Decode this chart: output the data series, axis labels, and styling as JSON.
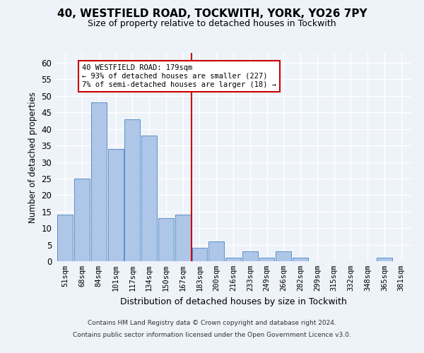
{
  "title1": "40, WESTFIELD ROAD, TOCKWITH, YORK, YO26 7PY",
  "title2": "Size of property relative to detached houses in Tockwith",
  "xlabel": "Distribution of detached houses by size in Tockwith",
  "ylabel": "Number of detached properties",
  "bar_labels": [
    "51sqm",
    "68sqm",
    "84sqm",
    "101sqm",
    "117sqm",
    "134sqm",
    "150sqm",
    "167sqm",
    "183sqm",
    "200sqm",
    "216sqm",
    "233sqm",
    "249sqm",
    "266sqm",
    "282sqm",
    "299sqm",
    "315sqm",
    "332sqm",
    "348sqm",
    "365sqm",
    "381sqm"
  ],
  "bar_values": [
    14,
    25,
    48,
    34,
    43,
    38,
    13,
    14,
    4,
    6,
    1,
    3,
    1,
    3,
    1,
    0,
    0,
    0,
    0,
    1,
    0
  ],
  "bar_color": "#aec6e8",
  "bar_edge_color": "#5b8fc9",
  "vline_x": 7.5,
  "vline_color": "#cc0000",
  "annotation_text": "40 WESTFIELD ROAD: 179sqm\n← 93% of detached houses are smaller (227)\n7% of semi-detached houses are larger (18) →",
  "annotation_box_color": "#ffffff",
  "annotation_box_edgecolor": "#cc0000",
  "ylim": [
    0,
    63
  ],
  "yticks": [
    0,
    5,
    10,
    15,
    20,
    25,
    30,
    35,
    40,
    45,
    50,
    55,
    60
  ],
  "footer1": "Contains HM Land Registry data © Crown copyright and database right 2024.",
  "footer2": "Contains public sector information licensed under the Open Government Licence v3.0.",
  "bg_color": "#eef2f9",
  "grid_color": "#ffffff"
}
